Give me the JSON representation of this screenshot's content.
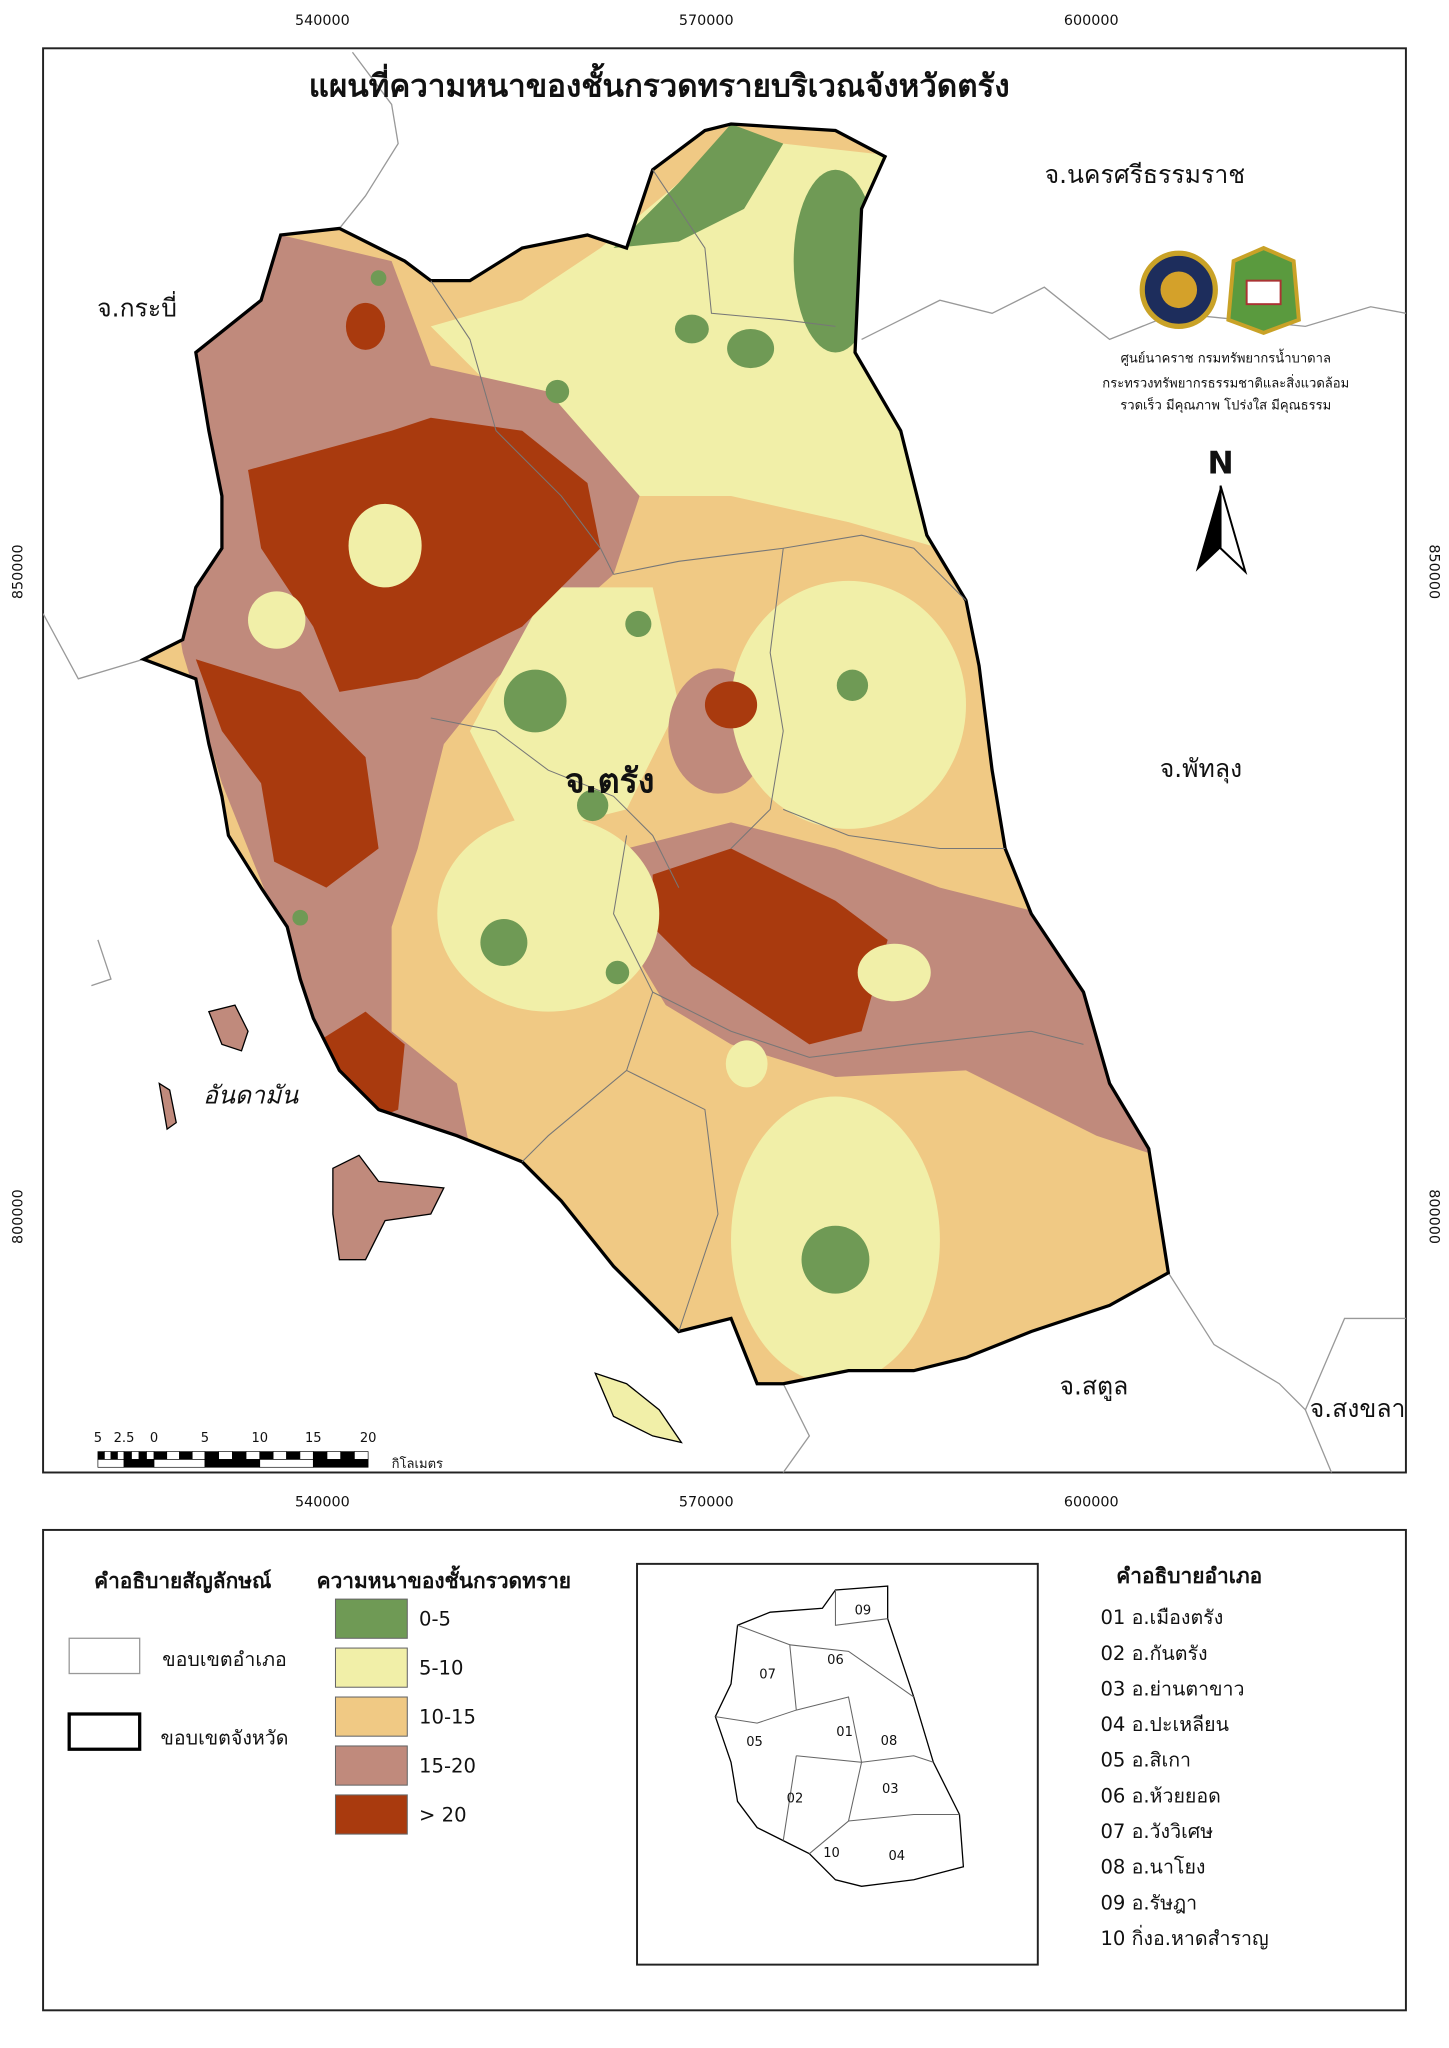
{
  "title": "แผนที่ความหนาของชั้นกรวดทรายบริเวณจังหวัดตรัง",
  "grid_labels": {
    "x_top": [
      540000,
      570000,
      600000
    ],
    "x_bottom": [
      540000,
      570000,
      600000
    ],
    "y_left": [
      850000,
      800000
    ],
    "y_right": [
      850000,
      800000
    ]
  },
  "places": [
    "จ.นครศรีธรรมราช",
    "จ.กระบี่",
    "จ.ตรัง",
    "จ.พัทลุง",
    "อันดามัน",
    "จ.สตูล",
    "จ.สงขลา"
  ],
  "agency": [
    "ศูนย์นาคราช กรมทรัพยากรน้ำบาดาล",
    "กระทรวงทรัพยากรธรรมชาติและสิ่งแวดล้อม",
    "รวดเร็ว มีคุณภาพ โปร่งใส มีคุณธรรม"
  ],
  "north": "N",
  "scale_bar": {
    "ticks": [
      "5",
      "2.5",
      "0",
      "5",
      "10",
      "15",
      "20"
    ],
    "unit": "กิโลเมตร"
  },
  "legend": {
    "title": "คำอธิบายสัญลักษณ์",
    "boundaries": [
      "ขอบเขตอำเภอ",
      "ขอบเขตจังหวัด"
    ],
    "thickness_title": "ความหนาของชั้นกรวดทราย",
    "classes": [
      {
        "label": "0-5",
        "color": "#6f9a55"
      },
      {
        "label": "5-10",
        "color": "#f1efa8"
      },
      {
        "label": "10-15",
        "color": "#f0c984"
      },
      {
        "label": "15-20",
        "color": "#c08a7c"
      },
      {
        "label": "> 20",
        "color": "#a93a0e"
      }
    ]
  },
  "inset": {
    "labels": [
      "09",
      "06",
      "07",
      "01",
      "08",
      "05",
      "02",
      "03",
      "10",
      "04"
    ]
  },
  "districts": {
    "title": "คำอธิบายอำเภอ",
    "items": [
      "01 อ.เมืองตรัง",
      "02 อ.กันตรัง",
      "03 อ.ย่านตาขาว",
      "04 อ.ปะเหลียน",
      "05 อ.สิเกา",
      "06 อ.ห้วยยอด",
      "07 อ.วังวิเศษ",
      "08 อ.นาโยง",
      "09 อ.รัษฎา",
      "10 กิ่งอ.หาดสำราญ"
    ]
  }
}
